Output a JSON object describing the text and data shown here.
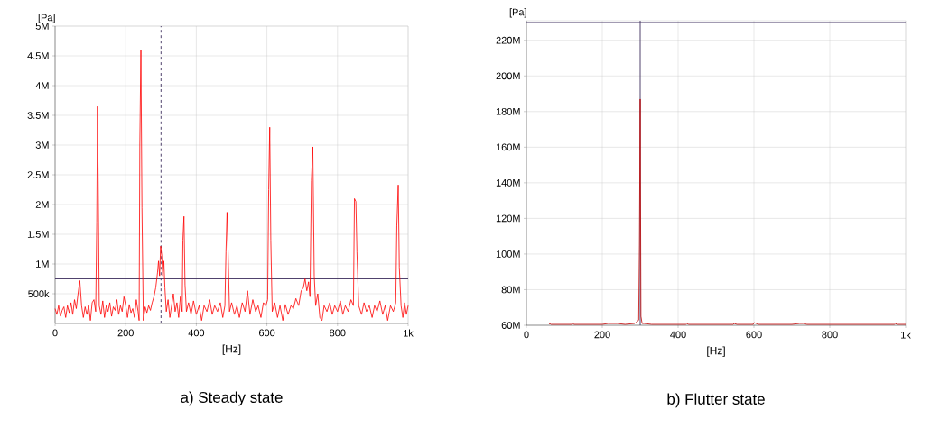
{
  "chart_data": [
    {
      "type": "line",
      "title": "a) Steady state",
      "xlabel": "[Hz]",
      "ylabel": "[Pa]",
      "xlim": [
        0,
        1000
      ],
      "ylim": [
        0,
        5000000
      ],
      "grid": true,
      "marker": "none",
      "line_style": "solid",
      "xticks": [
        0,
        200,
        400,
        600,
        800,
        {
          "value": 1000,
          "label": "1k"
        }
      ],
      "yticks": [
        {
          "value": 500000,
          "label": "500k"
        },
        {
          "value": 1000000,
          "label": "1M"
        },
        {
          "value": 1500000,
          "label": "1.5M"
        },
        {
          "value": 2000000,
          "label": "2M"
        },
        {
          "value": 2500000,
          "label": "2.5M"
        },
        {
          "value": 3000000,
          "label": "3M"
        },
        {
          "value": 3500000,
          "label": "3.5M"
        },
        {
          "value": 4000000,
          "label": "4M"
        },
        {
          "value": 4500000,
          "label": "4.5M"
        },
        {
          "value": 5000000,
          "label": "5M"
        }
      ],
      "ref_lines": [
        {
          "axis": "y",
          "value": 750000,
          "color": "#3c2d5c",
          "line_style": "solid"
        },
        {
          "axis": "x",
          "value": 300,
          "color": "#3c2d5c",
          "line_style": "dashed"
        }
      ],
      "x": [
        0,
        5,
        10,
        15,
        20,
        25,
        30,
        35,
        40,
        45,
        50,
        55,
        60,
        65,
        70,
        75,
        80,
        85,
        90,
        95,
        100,
        105,
        110,
        115,
        118,
        120,
        122,
        125,
        130,
        135,
        140,
        145,
        150,
        155,
        160,
        165,
        170,
        175,
        180,
        185,
        190,
        195,
        200,
        205,
        210,
        215,
        220,
        225,
        230,
        235,
        238,
        240,
        243,
        246,
        250,
        255,
        260,
        265,
        270,
        275,
        280,
        285,
        290,
        293,
        296,
        299,
        302,
        305,
        308,
        311,
        315,
        320,
        325,
        330,
        335,
        340,
        345,
        350,
        355,
        360,
        362,
        365,
        368,
        372,
        378,
        385,
        392,
        400,
        408,
        415,
        422,
        430,
        438,
        445,
        452,
        460,
        468,
        475,
        481,
        484,
        487,
        490,
        494,
        500,
        508,
        515,
        522,
        530,
        538,
        545,
        552,
        560,
        568,
        575,
        583,
        590,
        597,
        602,
        605,
        608,
        611,
        615,
        622,
        630,
        637,
        645,
        652,
        660,
        668,
        675,
        682,
        690,
        697,
        703,
        708,
        713,
        718,
        722,
        726,
        730,
        734,
        738,
        744,
        750,
        756,
        762,
        770,
        778,
        785,
        792,
        800,
        808,
        815,
        822,
        830,
        838,
        845,
        848,
        852,
        855,
        860,
        868,
        875,
        882,
        890,
        898,
        905,
        912,
        920,
        928,
        935,
        942,
        950,
        958,
        965,
        968,
        972,
        975,
        980,
        985,
        990,
        995,
        1000
      ],
      "series": [
        {
          "color": "#ff0000",
          "values": [
            250000,
            150000,
            300000,
            120000,
            220000,
            280000,
            100000,
            300000,
            180000,
            350000,
            150000,
            400000,
            250000,
            500000,
            720000,
            300000,
            100000,
            280000,
            150000,
            300000,
            50000,
            350000,
            400000,
            200000,
            1700000,
            3650000,
            2400000,
            300000,
            150000,
            380000,
            100000,
            300000,
            200000,
            350000,
            120000,
            280000,
            220000,
            400000,
            150000,
            300000,
            200000,
            450000,
            300000,
            100000,
            320000,
            180000,
            250000,
            100000,
            400000,
            200000,
            50000,
            3000000,
            4600000,
            1950000,
            50000,
            280000,
            180000,
            300000,
            220000,
            350000,
            450000,
            600000,
            850000,
            1050000,
            800000,
            1300000,
            1150000,
            800000,
            1050000,
            600000,
            200000,
            400000,
            100000,
            300000,
            500000,
            200000,
            350000,
            100000,
            450000,
            200000,
            1400000,
            1800000,
            650000,
            200000,
            350000,
            150000,
            380000,
            150000,
            300000,
            50000,
            300000,
            200000,
            400000,
            150000,
            300000,
            200000,
            350000,
            100000,
            300000,
            1200000,
            1870000,
            1200000,
            200000,
            350000,
            150000,
            300000,
            100000,
            350000,
            200000,
            550000,
            150000,
            400000,
            200000,
            300000,
            100000,
            350000,
            300000,
            400000,
            2250000,
            3300000,
            1400000,
            200000,
            350000,
            100000,
            300000,
            50000,
            320000,
            150000,
            300000,
            250000,
            420000,
            300000,
            550000,
            600000,
            750000,
            550000,
            700000,
            450000,
            2400000,
            2970000,
            800000,
            300000,
            500000,
            100000,
            50000,
            300000,
            200000,
            350000,
            150000,
            300000,
            200000,
            380000,
            150000,
            300000,
            200000,
            400000,
            300000,
            2100000,
            2050000,
            1200000,
            300000,
            150000,
            350000,
            200000,
            300000,
            100000,
            300000,
            200000,
            380000,
            150000,
            300000,
            50000,
            300000,
            200000,
            350000,
            1650000,
            2330000,
            950000,
            300000,
            100000,
            350000,
            150000,
            300000
          ]
        }
      ]
    },
    {
      "type": "line",
      "title": "b) Flutter state",
      "xlabel": "[Hz]",
      "ylabel": "[Pa]",
      "xlim": [
        0,
        1000
      ],
      "ylim": [
        60000000,
        231000000
      ],
      "grid": true,
      "marker": "none",
      "line_style": "solid",
      "xticks": [
        0,
        200,
        400,
        600,
        800,
        {
          "value": 1000,
          "label": "1k"
        }
      ],
      "yticks": [
        {
          "value": 60000000,
          "label": "60M"
        },
        {
          "value": 80000000,
          "label": "80M"
        },
        {
          "value": 100000000,
          "label": "100M"
        },
        {
          "value": 120000000,
          "label": "120M"
        },
        {
          "value": 140000000,
          "label": "140M"
        },
        {
          "value": 160000000,
          "label": "160M"
        },
        {
          "value": 180000000,
          "label": "180M"
        },
        {
          "value": 200000000,
          "label": "200M"
        },
        {
          "value": 220000000,
          "label": "220M"
        }
      ],
      "ref_lines": [
        {
          "axis": "y",
          "value": 230000000,
          "color": "#3c2d5c",
          "line_style": "solid"
        },
        {
          "axis": "x",
          "value": 300,
          "color": "#3c2d5c",
          "line_style": "solid"
        }
      ],
      "x": [
        60,
        62,
        65,
        120,
        122,
        126,
        200,
        215,
        240,
        260,
        285,
        292,
        296,
        298,
        300,
        302,
        305,
        310,
        330,
        420,
        423,
        428,
        545,
        548,
        555,
        598,
        600,
        606,
        612,
        700,
        720,
        730,
        740,
        970,
        973,
        977,
        1000
      ],
      "series": [
        {
          "color": "#c00000",
          "values": [
            60500000,
            61000000,
            60500000,
            60500000,
            61000000,
            60500000,
            60500000,
            61000000,
            61000000,
            60500000,
            61000000,
            62000000,
            63000000,
            105000000,
            187000000,
            65000000,
            61000000,
            61000000,
            60500000,
            60500000,
            61000000,
            60500000,
            60500000,
            61000000,
            60500000,
            60500000,
            61500000,
            61000000,
            60500000,
            60500000,
            61000000,
            61000000,
            60500000,
            60500000,
            61000000,
            60500000,
            60500000
          ]
        }
      ]
    }
  ]
}
